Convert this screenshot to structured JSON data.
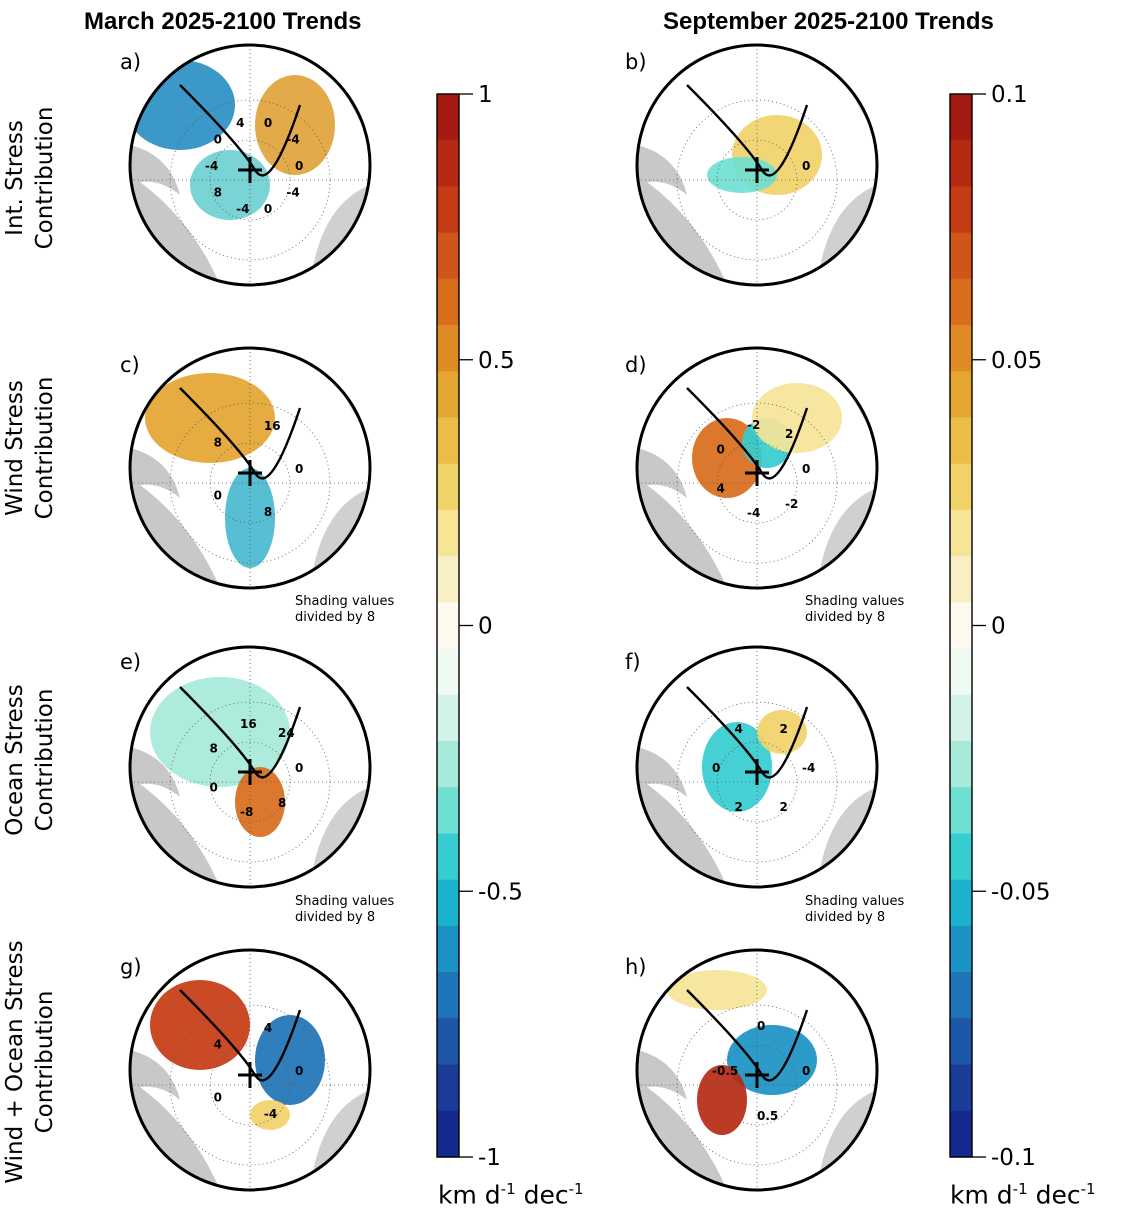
{
  "column_titles": {
    "left": "March 2025-2100 Trends",
    "right": "September 2025-2100 Trends"
  },
  "row_labels": [
    {
      "line1": "Int. Stress",
      "line2": "Contribution"
    },
    {
      "line1": "Wind Stress",
      "line2": "Contribution"
    },
    {
      "line1": "Ocean Stress",
      "line2": "Contribution"
    },
    {
      "line1": "Wind + Ocean Stress",
      "line2": "Contribution"
    }
  ],
  "panels": [
    {
      "letter": "a)",
      "column": "left",
      "row": 0,
      "note": null,
      "contour_labels": [
        "0",
        "-4",
        "0",
        "-4",
        "8",
        "-4",
        "0",
        "4",
        "0",
        "-4"
      ]
    },
    {
      "letter": "b)",
      "column": "right",
      "row": 0,
      "note": null,
      "contour_labels": [
        "0"
      ]
    },
    {
      "letter": "c)",
      "column": "left",
      "row": 1,
      "note": {
        "line1": "Shading values",
        "line2": "divided by 8"
      },
      "contour_labels": [
        "0",
        "8",
        "0",
        "8",
        "16"
      ]
    },
    {
      "letter": "d)",
      "column": "right",
      "row": 1,
      "note": {
        "line1": "Shading values",
        "line2": "divided by 8"
      },
      "contour_labels": [
        "0",
        "-2",
        "-4",
        "4",
        "0",
        "-2",
        "2"
      ]
    },
    {
      "letter": "e)",
      "column": "left",
      "row": 2,
      "note": {
        "line1": "Shading values",
        "line2": "divided by 8"
      },
      "contour_labels": [
        "0",
        "8",
        "-8",
        "0",
        "8",
        "16",
        "24"
      ]
    },
    {
      "letter": "f)",
      "column": "right",
      "row": 2,
      "note": {
        "line1": "Shading values",
        "line2": "divided by 8"
      },
      "contour_labels": [
        "-4",
        "2",
        "2",
        "0",
        "4",
        "2"
      ]
    },
    {
      "letter": "g)",
      "column": "left",
      "row": 3,
      "note": null,
      "contour_labels": [
        "0",
        "-4",
        "0",
        "4",
        "4"
      ]
    },
    {
      "letter": "h)",
      "column": "right",
      "row": 3,
      "note": null,
      "contour_labels": [
        "0",
        "0.5",
        "-0.5",
        "0"
      ]
    }
  ],
  "chart_data": [
    {
      "type": "heatmap",
      "map_projection": "polar stereographic, Arctic",
      "colorbar": {
        "min": -1,
        "max": 1,
        "ticks": [
          1,
          0.5,
          0,
          -0.5,
          -1
        ],
        "tick_labels": [
          "1",
          "0.5",
          "0",
          "-0.5",
          "-1"
        ],
        "unit_base": "km d",
        "unit_exp1": "-1",
        "unit_mid": " dec",
        "unit_exp2": "-1",
        "levels": 20
      },
      "colors_top_to_bottom": [
        "#a51b12",
        "#b62a14",
        "#c53b14",
        "#cf5518",
        "#d86d1c",
        "#df8a24",
        "#e5a531",
        "#ebbe47",
        "#f1d36a",
        "#f6e497",
        "#f9efc5",
        "#fdfbef",
        "#eefaf2",
        "#d2f3e6",
        "#a6ead9",
        "#6fdfd2",
        "#35cdd0",
        "#1ab2cc",
        "#1a93c4",
        "#1f73b7",
        "#1f57a8",
        "#1c3c9a",
        "#142a8e"
      ]
    },
    {
      "type": "heatmap",
      "map_projection": "polar stereographic, Arctic",
      "colorbar": {
        "min": -0.1,
        "max": 0.1,
        "ticks": [
          0.1,
          0.05,
          0,
          -0.05,
          -0.1
        ],
        "tick_labels": [
          "0.1",
          "0.05",
          "0",
          "-0.05",
          "-0.1"
        ],
        "unit_base": "km d",
        "unit_exp1": "-1",
        "unit_mid": " dec",
        "unit_exp2": "-1",
        "levels": 20
      }
    }
  ]
}
